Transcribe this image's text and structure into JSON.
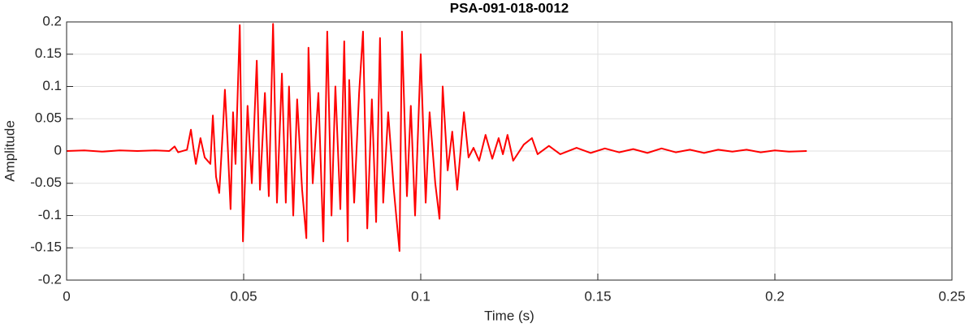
{
  "chart_data": {
    "type": "line",
    "title": "PSA-091-018-0012",
    "x_label": "Time (s)",
    "y_label": "Amplitude",
    "xlim": [
      0,
      0.25
    ],
    "ylim": [
      -0.2,
      0.2
    ],
    "xticks": [
      0,
      0.05,
      0.1,
      0.15,
      0.2,
      0.25
    ],
    "yticks": [
      -0.2,
      -0.15,
      -0.1,
      -0.05,
      0,
      0.05,
      0.1,
      0.15,
      0.2
    ],
    "grid": true,
    "series": [
      {
        "color": "#ff0000",
        "x": [
          0,
          0.005,
          0.01,
          0.015,
          0.02,
          0.025,
          0.029,
          0.0305,
          0.0315,
          0.034,
          0.0351,
          0.0358,
          0.0365,
          0.0378,
          0.039,
          0.0406,
          0.0413,
          0.0422,
          0.0431,
          0.0442,
          0.0447,
          0.0454,
          0.0463,
          0.047,
          0.0477,
          0.0489,
          0.0498,
          0.0511,
          0.0523,
          0.0537,
          0.0546,
          0.056,
          0.0571,
          0.0583,
          0.0594,
          0.0608,
          0.0619,
          0.0628,
          0.064,
          0.0651,
          0.0665,
          0.0677,
          0.0683,
          0.0695,
          0.0711,
          0.0725,
          0.0736,
          0.0748,
          0.0759,
          0.0773,
          0.0784,
          0.0794,
          0.0798,
          0.0812,
          0.0826,
          0.0837,
          0.0849,
          0.0862,
          0.0874,
          0.0885,
          0.0894,
          0.0908,
          0.0924,
          0.094,
          0.0947,
          0.0961,
          0.0972,
          0.0984,
          0.1,
          0.1014,
          0.1025,
          0.1041,
          0.1053,
          0.1062,
          0.1076,
          0.1089,
          0.1103,
          0.1122,
          0.1135,
          0.1149,
          0.1165,
          0.1183,
          0.1202,
          0.122,
          0.1232,
          0.1245,
          0.1261,
          0.1291,
          0.1314,
          0.133,
          0.1362,
          0.1394,
          0.144,
          0.148,
          0.152,
          0.156,
          0.16,
          0.164,
          0.168,
          0.172,
          0.176,
          0.18,
          0.184,
          0.188,
          0.192,
          0.196,
          0.2,
          0.204,
          0.209
        ],
        "values": [
          0,
          0.001,
          -0.001,
          0.001,
          0,
          0.001,
          0,
          0.007,
          -0.002,
          0.002,
          0.033,
          0.005,
          -0.02,
          0.02,
          -0.01,
          -0.02,
          0.055,
          -0.04,
          -0.065,
          0.04,
          0.095,
          0.02,
          -0.09,
          0.06,
          -0.02,
          0.195,
          -0.14,
          0.07,
          -0.05,
          0.14,
          -0.06,
          0.09,
          -0.07,
          0.197,
          -0.08,
          0.12,
          -0.08,
          0.1,
          -0.1,
          0.08,
          -0.06,
          -0.135,
          0.16,
          -0.05,
          0.09,
          -0.14,
          0.185,
          -0.1,
          0.1,
          -0.09,
          0.17,
          -0.14,
          0.11,
          -0.08,
          0.09,
          0.185,
          -0.12,
          0.08,
          -0.11,
          0.175,
          -0.08,
          0.06,
          -0.06,
          -0.155,
          0.185,
          -0.07,
          0.07,
          -0.1,
          0.15,
          -0.08,
          0.06,
          -0.05,
          -0.105,
          0.1,
          -0.03,
          0.03,
          -0.06,
          0.06,
          -0.01,
          0.005,
          -0.015,
          0.025,
          -0.012,
          0.02,
          -0.005,
          0.025,
          -0.015,
          0.01,
          0.02,
          -0.005,
          0.008,
          -0.005,
          0.005,
          -0.003,
          0.004,
          -0.002,
          0.003,
          -0.003,
          0.004,
          -0.002,
          0.002,
          -0.003,
          0.002,
          -0.001,
          0.002,
          -0.002,
          0.001,
          -0.001,
          0
        ]
      }
    ]
  }
}
